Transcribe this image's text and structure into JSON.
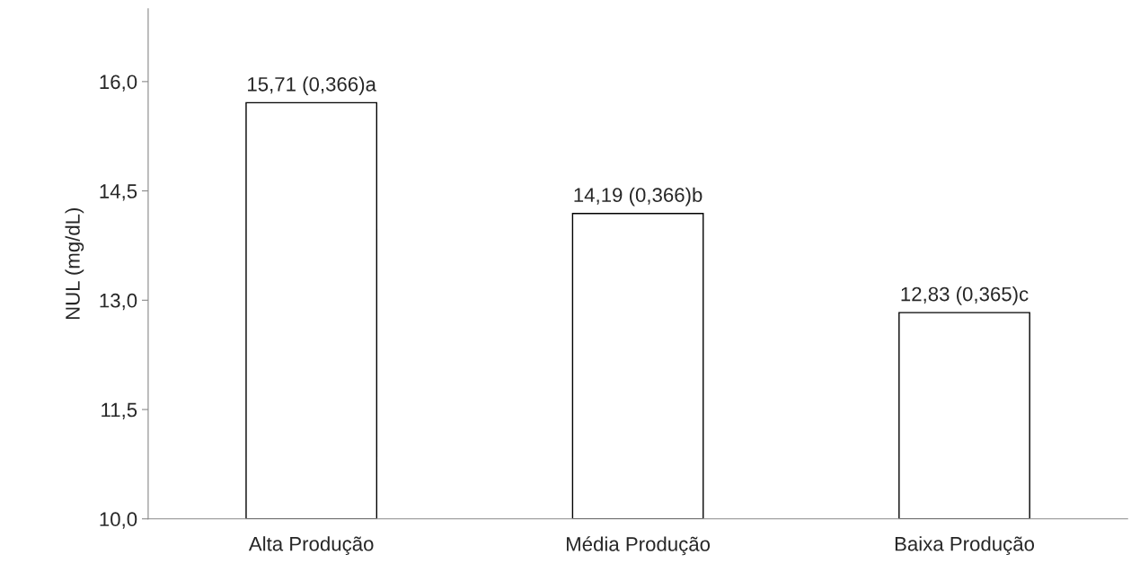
{
  "chart_data": {
    "type": "bar",
    "ylabel": "NUL (mg/dL)",
    "categories": [
      "Alta Produção",
      "Média Produção",
      "Baixa Produção"
    ],
    "values": [
      15.71,
      14.19,
      12.83
    ],
    "value_labels": [
      "15,71 (0,366)a",
      "14,19 (0,366)b",
      "12,83 (0,365)c"
    ],
    "color": "#ffffff",
    "ylim": [
      10.0,
      17.0
    ],
    "yticks": [
      {
        "value": 10.0,
        "label": "10,0"
      },
      {
        "value": 11.5,
        "label": "11,5"
      },
      {
        "value": 13.0,
        "label": "13,0"
      },
      {
        "value": 14.5,
        "label": "14,5"
      },
      {
        "value": 16.0,
        "label": "16,0"
      }
    ],
    "grid": false,
    "legend": false
  }
}
